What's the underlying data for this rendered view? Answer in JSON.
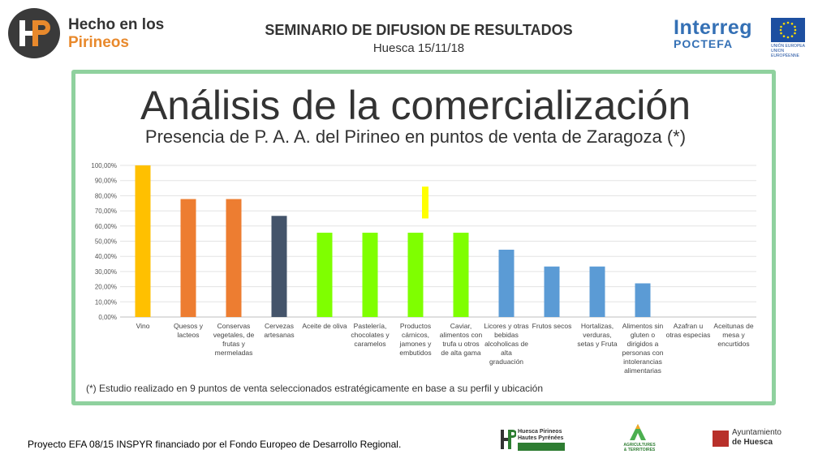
{
  "header": {
    "brand_line1": "Hecho en los",
    "brand_line2": "Pirineos",
    "seminar_title": "SEMINARIO DE DIFUSION DE RESULTADOS",
    "seminar_subtitle": "Huesca 15/11/18",
    "interreg_name": "Interreg",
    "interreg_sub": "POCTEFA",
    "eu_text": "UNIÓN EUROPEA UNION EUROPÉENNE"
  },
  "slide": {
    "title": "Análisis de la comercialización",
    "subtitle": "Presencia de P. A. A. del Pirineo en puntos de venta de Zaragoza (*)",
    "footnote": "(*) Estudio realizado en 9 puntos de venta seleccionados estratégicamente en base a su perfil y ubicación"
  },
  "chart_data": {
    "type": "bar",
    "title": "",
    "xlabel": "",
    "ylabel": "",
    "ylim": [
      0,
      1
    ],
    "y_ticks": [
      "0,00%",
      "10,00%",
      "20,00%",
      "30,00%",
      "40,00%",
      "50,00%",
      "60,00%",
      "70,00%",
      "80,00%",
      "90,00%",
      "100,00%"
    ],
    "grid": true,
    "categories": [
      "Vino",
      "Quesos y lacteos",
      "Conservas vegetales, de frutas y mermeladas",
      "Cervezas artesanas",
      "Aceite de oliva",
      "Pastelería, chocolates y caramelos",
      "Productos cárnicos, jamones y embutidos",
      "Caviar, alimentos con trufa u otros de alta gama",
      "Licores y otras bebidas alcoholicas de alta graduación",
      "Frutos secos",
      "Hortalizas, verduras, setas y Fruta",
      "Alimentos sin gluten o dirigidos a personas con intolerancias alimentarias",
      "Azafran u otras especias",
      "Aceitunas de mesa y encurtidos"
    ],
    "values": [
      1.0,
      0.778,
      0.778,
      0.667,
      0.556,
      0.556,
      0.556,
      0.556,
      0.444,
      0.333,
      0.333,
      0.222,
      0,
      0
    ],
    "colors": [
      "#ffc000",
      "#ed7d31",
      "#ed7d31",
      "#44546a",
      "#7fff00",
      "#7fff00",
      "#7fff00",
      "#7fff00",
      "#5b9bd5",
      "#5b9bd5",
      "#5b9bd5",
      "#5b9bd5",
      "#5b9bd5",
      "#5b9bd5"
    ],
    "annotation": {
      "color": "#ffff00",
      "from": 0.65,
      "to": 0.86,
      "category": 6
    }
  },
  "footer": {
    "funding": "Proyecto EFA 08/15 INSPYR financiado por el Fondo Europeo de Desarrollo Regional.",
    "hpyr_line1": "Huesca Pirineos",
    "hpyr_line2": "Hautes Pyrénées",
    "agri_text": "AGRICULTURES & TERRITOIRES",
    "ayto_line1": "Ayuntamiento",
    "ayto_line2": "de Huesca"
  }
}
